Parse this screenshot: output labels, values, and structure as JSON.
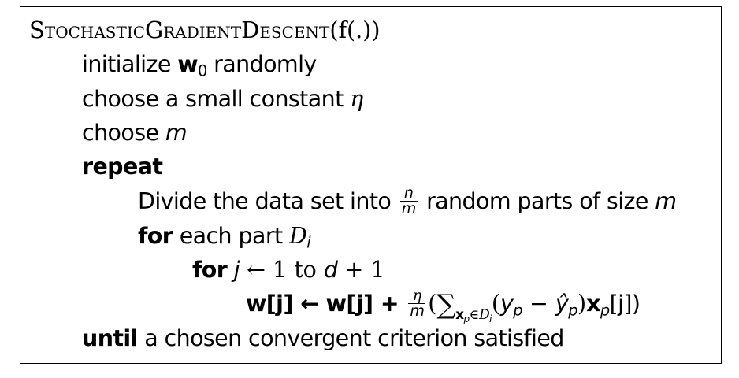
{
  "algorithm": {
    "name": "StochasticGradientDescent",
    "name_parts": [
      "Stochastic",
      "Gradient",
      "Descent"
    ],
    "signature_arg": "(f(.))",
    "lines": [
      {
        "kind": "text",
        "prefix": "initialize ",
        "symbol": "w",
        "sub": "0",
        "suffix": " randomly"
      },
      {
        "kind": "text",
        "prefix": "choose a small constant ",
        "symbol": "η"
      },
      {
        "kind": "text",
        "prefix": "choose ",
        "symbol": "m"
      },
      {
        "kind": "keyword",
        "keyword": "repeat"
      },
      {
        "kind": "text",
        "prefix": "Divide the data set into ",
        "frac_num": "n",
        "frac_den": "m",
        "suffix": " random parts of size ",
        "symbol": "m"
      },
      {
        "kind": "for",
        "keyword": "for",
        "text": " each part ",
        "symbol": "D",
        "sub": "i"
      },
      {
        "kind": "for",
        "keyword": "for",
        "var": "j",
        "arrow": " ← 1 to ",
        "bound_var": "d",
        "bound_rest": " + 1"
      },
      {
        "kind": "update",
        "lhs": "w[j] ← w[j] + ",
        "frac_num": "η",
        "frac_den": "m",
        "sum": "∑",
        "sum_sub_vec": "x",
        "sum_sub_p": "p",
        "sum_sub_in": "∈",
        "sum_sub_set": "D",
        "sum_sub_i": "i",
        "body_open": "(",
        "y": "y",
        "p": "p",
        "minus": " − ",
        "yhat": "ŷ",
        "body_close": ")",
        "x": "x",
        "xj": "[j])"
      },
      {
        "kind": "keyword-text",
        "keyword": "until",
        "text": " a chosen convergent criterion satisfied"
      }
    ]
  }
}
